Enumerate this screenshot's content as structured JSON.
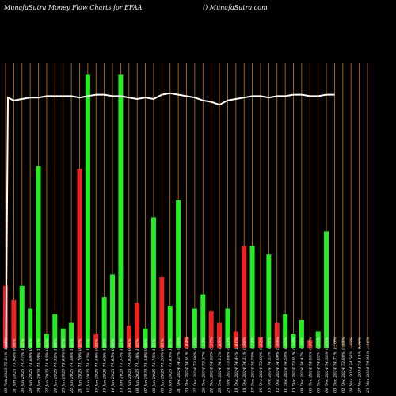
{
  "header": {
    "title": "MunafaSutra  Money Flow  Charts for EFAA",
    "watermark": "() MunafaSutra.com"
  },
  "chart_data": {
    "type": "bar",
    "title": "MunafaSutra  Money Flow  Charts for EFAA",
    "ylim": [
      0,
      100
    ],
    "categories": [
      "03 Feb 2025 75.21% 1.05%",
      "31 Jan 2025 73.94% 0.98%",
      "30 Jan 2025 74.47% 1.01%",
      "29 Jan 2025 73.68% 0.95%",
      "28 Jan 2025 74.28% 1.12%",
      "27 Jan 2025 73.95% 0.93%",
      "24 Jan 2025 74.32% 1.08%",
      "23 Jan 2025 73.89% 0.97%",
      "22 Jan 2025 74.58% 1.03%",
      "21 Jan 2025 74.76% 0.89%",
      "17 Jan 2025 74.42% 1.15%",
      "16 Jan 2025 74.88% 0.92%",
      "15 Jan 2025 74.05% 1.06%",
      "14 Jan 2025 74.65% 0.99%",
      "13 Jan 2025 75.37% 1.21%",
      "10 Jan 2025 74.92% 0.94%",
      "08 Jan 2025 74.18% 1.02%",
      "07 Jan 2025 74.54% 0.96%",
      "06 Jan 2025 73.79% 1.11%",
      "03 Jan 2025 74.26% 0.91%",
      "02 Jan 2025 73.83% 1.07%",
      "31 Dec 2024 74.37% 0.98%",
      "30 Dec 2024 74.91% 1.04%",
      "27 Dec 2024 73.96% 0.95%",
      "26 Dec 2024 73.37% 1.13%",
      "24 Dec 2024 74.69% 0.97%",
      "23 Dec 2024 74.12% 1.09%",
      "20 Dec 2024 73.86% 0.93%",
      "19 Dec 2024 74.44% 1.01%",
      "18 Dec 2024 74.21% 0.96%",
      "17 Dec 2024 74.78% 1.14%",
      "16 Dec 2024 73.92% 0.92%",
      "13 Dec 2024 74.53% 1.06%",
      "12 Dec 2024 74.09% 0.99%",
      "11 Dec 2024 74.59% 1.02%",
      "10 Dec 2024 73.91% 0.94%",
      "09 Dec 2024 74.47% 1.08%",
      "06 Dec 2024 74.86% 0.97%",
      "05 Dec 2024 74.02% 1.05%",
      "04 Dec 2024 74.38% 0.95%",
      "03 Dec 2024 74.71% 1.10%",
      "02 Dec 2024 73.98% 0.98%",
      "29 Nov 2024 74.56% 1.03%",
      "27 Nov 2024 74.14% 0.96%",
      "26 Nov 2024 74.95% 1.16%"
    ],
    "series": [
      {
        "type": "bar",
        "colors": [
          "red",
          "red",
          "green",
          "green",
          "green",
          "green",
          "green",
          "green",
          "green",
          "red",
          "green",
          "red",
          "green",
          "green",
          "green",
          "red",
          "red",
          "green",
          "green",
          "red",
          "green",
          "green",
          "red",
          "green",
          "green",
          "red",
          "red",
          "green",
          "red",
          "red",
          "green",
          "red",
          "green",
          "red",
          "green",
          "green",
          "green",
          "red",
          "green",
          "green",
          "green",
          "red",
          "red",
          "green",
          "red"
        ],
        "values": [
          22,
          17,
          22,
          14,
          64,
          5,
          12,
          7,
          9,
          63,
          96,
          5,
          18,
          26,
          96,
          8,
          16,
          7,
          46,
          25,
          15,
          52,
          4,
          14,
          19,
          13,
          9,
          14,
          6,
          36,
          36,
          4,
          33,
          9,
          12,
          5,
          10,
          3,
          6,
          41,
          0,
          0,
          0,
          0,
          0
        ]
      },
      {
        "type": "line",
        "values": [
          88,
          87,
          87.5,
          88,
          88,
          88.5,
          88.5,
          88.5,
          88.5,
          88,
          88.5,
          89,
          89,
          88.5,
          88.5,
          88,
          87.5,
          88,
          87.5,
          89,
          89.5,
          89,
          88.5,
          88,
          87,
          86.5,
          85.5,
          87,
          87.5,
          88,
          88.5,
          88.5,
          88,
          88.5,
          88.5,
          89,
          89,
          88.5,
          88.5,
          89,
          89,
          0,
          0,
          0,
          0
        ]
      }
    ],
    "grid": true,
    "legend": "none"
  },
  "colors": {
    "background": "#000000",
    "grid": "#cc7a00",
    "bar_up": "#22ee22",
    "bar_down": "#ee2222",
    "line": "#ffffff",
    "text": "#ffffff"
  }
}
